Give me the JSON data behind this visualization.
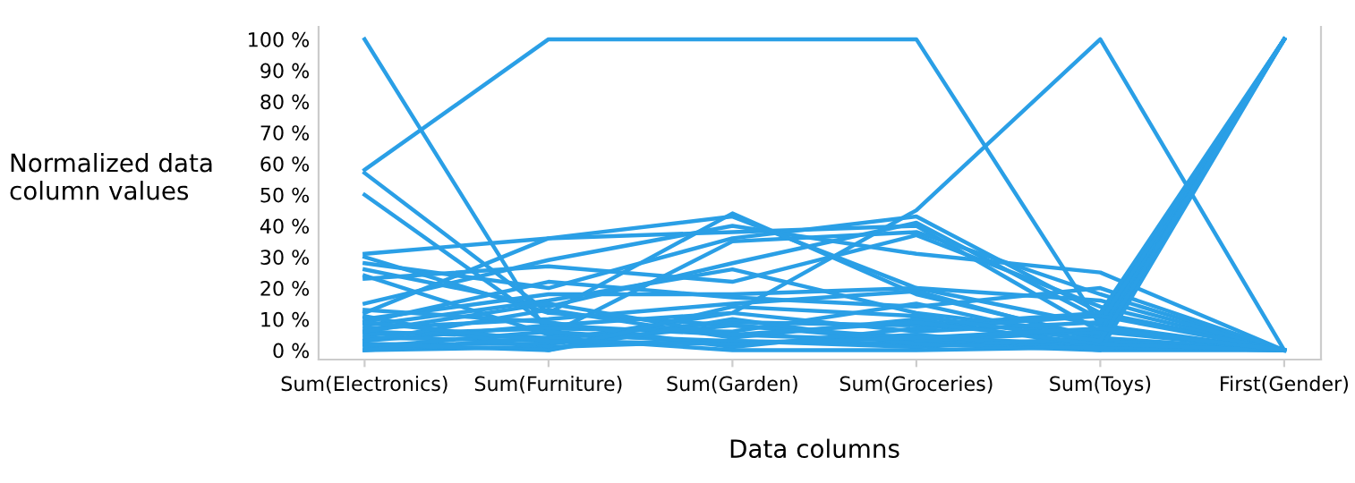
{
  "chart_data": {
    "type": "line",
    "xlabel": "Data columns",
    "ylabel": "Normalized data\ncolumn values",
    "categories": [
      "Sum(Electronics)",
      "Sum(Furniture)",
      "Sum(Garden)",
      "Sum(Groceries)",
      "Sum(Toys)",
      "First(Gender)"
    ],
    "ylim": [
      -3,
      104
    ],
    "yticks": [
      {
        "value": 0,
        "label": "0 %"
      },
      {
        "value": 10,
        "label": "10 %"
      },
      {
        "value": 20,
        "label": "20 %"
      },
      {
        "value": 30,
        "label": "30 %"
      },
      {
        "value": 40,
        "label": "40 %"
      },
      {
        "value": 50,
        "label": "50 %"
      },
      {
        "value": 60,
        "label": "60 %"
      },
      {
        "value": 70,
        "label": "70 %"
      },
      {
        "value": 80,
        "label": "80 %"
      },
      {
        "value": 90,
        "label": "90 %"
      },
      {
        "value": 100,
        "label": "100 %"
      }
    ],
    "marker": "none",
    "line_style": "solid",
    "series": [
      {
        "color": "#2a9fe6",
        "values": [
          58,
          100,
          100,
          100,
          8,
          0
        ]
      },
      {
        "color": "#2a9fe6",
        "values": [
          100,
          5,
          3,
          2,
          1,
          0
        ]
      },
      {
        "color": "#2a9fe6",
        "values": [
          57,
          12,
          8,
          4,
          2,
          0
        ]
      },
      {
        "color": "#2a9fe6",
        "values": [
          50,
          8,
          5,
          3,
          2,
          100
        ]
      },
      {
        "color": "#2a9fe6",
        "values": [
          3,
          8,
          12,
          45,
          100,
          0
        ]
      },
      {
        "color": "#2a9fe6",
        "values": [
          31,
          36,
          38,
          40,
          6,
          0
        ]
      },
      {
        "color": "#2a9fe6",
        "values": [
          30,
          12,
          44,
          18,
          4,
          0
        ]
      },
      {
        "color": "#2a9fe6",
        "values": [
          28,
          20,
          36,
          43,
          12,
          0
        ]
      },
      {
        "color": "#2a9fe6",
        "values": [
          26,
          14,
          28,
          41,
          10,
          100
        ]
      },
      {
        "color": "#2a9fe6",
        "values": [
          24,
          5,
          35,
          38,
          18,
          0
        ]
      },
      {
        "color": "#2a9fe6",
        "values": [
          23,
          27,
          22,
          37,
          14,
          0
        ]
      },
      {
        "color": "#2a9fe6",
        "values": [
          15,
          29,
          40,
          31,
          25,
          0
        ]
      },
      {
        "color": "#2a9fe6",
        "values": [
          12,
          36,
          43,
          20,
          8,
          100
        ]
      },
      {
        "color": "#2a9fe6",
        "values": [
          10,
          18,
          18,
          20,
          16,
          0
        ]
      },
      {
        "color": "#2a9fe6",
        "values": [
          9,
          22,
          17,
          14,
          20,
          0
        ]
      },
      {
        "color": "#2a9fe6",
        "values": [
          8,
          16,
          26,
          12,
          5,
          100
        ]
      },
      {
        "color": "#2a9fe6",
        "values": [
          7,
          10,
          15,
          19,
          3,
          0
        ]
      },
      {
        "color": "#2a9fe6",
        "values": [
          6,
          4,
          9,
          8,
          12,
          100
        ]
      },
      {
        "color": "#2a9fe6",
        "values": [
          5,
          7,
          6,
          15,
          2,
          0
        ]
      },
      {
        "color": "#2a9fe6",
        "values": [
          4,
          3,
          12,
          6,
          9,
          100
        ]
      },
      {
        "color": "#2a9fe6",
        "values": [
          3,
          13,
          4,
          10,
          1,
          0
        ]
      },
      {
        "color": "#2a9fe6",
        "values": [
          2,
          2,
          8,
          3,
          6,
          100
        ]
      },
      {
        "color": "#2a9fe6",
        "values": [
          1,
          6,
          2,
          5,
          0,
          0
        ]
      },
      {
        "color": "#2a9fe6",
        "values": [
          0,
          1,
          3,
          1,
          4,
          100
        ]
      },
      {
        "color": "#2a9fe6",
        "values": [
          13,
          9,
          1,
          7,
          11,
          0
        ]
      },
      {
        "color": "#2a9fe6",
        "values": [
          11,
          0,
          10,
          2,
          0,
          100
        ]
      },
      {
        "color": "#2a9fe6",
        "values": [
          0,
          4,
          0,
          0,
          1,
          0
        ]
      },
      {
        "color": "#2a9fe6",
        "values": [
          6,
          15,
          5,
          9,
          2,
          0
        ]
      },
      {
        "color": "#2a9fe6",
        "values": [
          2,
          0,
          14,
          11,
          3,
          100
        ]
      },
      {
        "color": "#2a9fe6",
        "values": [
          9,
          3,
          2,
          4,
          7,
          0
        ]
      }
    ]
  }
}
